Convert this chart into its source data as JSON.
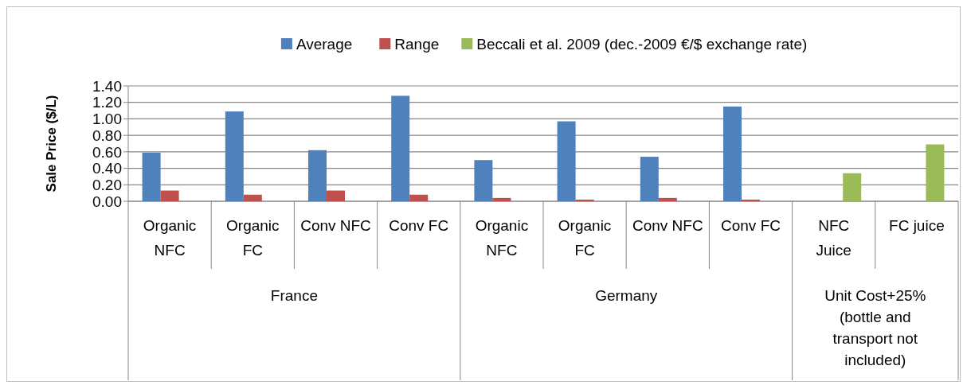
{
  "chart_data": {
    "type": "bar",
    "ylabel": "Sale Price ($/L)",
    "categories": [
      "Organic NFC",
      "Organic FC",
      "Conv NFC",
      "Conv FC",
      "Organic NFC",
      "Organic FC",
      "Conv NFC",
      "Conv FC",
      "NFC Juice",
      "FC juice"
    ],
    "series": [
      {
        "name": "Average",
        "color": "#4f81bd",
        "values": [
          0.59,
          1.09,
          0.62,
          1.28,
          0.5,
          0.97,
          0.54,
          1.15,
          null,
          null
        ]
      },
      {
        "name": "Range",
        "color": "#c0504d",
        "values": [
          0.13,
          0.08,
          0.13,
          0.08,
          0.04,
          0.02,
          0.04,
          0.02,
          null,
          null
        ]
      },
      {
        "name": "Beccali et al. 2009 (dec.-2009 €/$ exchange rate)",
        "color": "#9bbb59",
        "values": [
          null,
          null,
          null,
          null,
          null,
          null,
          null,
          null,
          0.34,
          0.69
        ]
      }
    ],
    "ylim": [
      0,
      1.4
    ],
    "yticks": [
      {
        "value": 0,
        "label": "0.00"
      },
      {
        "value": 0.2,
        "label": "0.20"
      },
      {
        "value": 0.4,
        "label": "0.40"
      },
      {
        "value": 0.6,
        "label": "0.60"
      },
      {
        "value": 0.8,
        "label": "0.80"
      },
      {
        "value": 1,
        "label": "1.00"
      },
      {
        "value": 1.2,
        "label": "1.20"
      },
      {
        "value": 1.4,
        "label": "1.40"
      }
    ],
    "grid": "y",
    "legend": "top",
    "annotations": [
      "France",
      "Germany",
      "Unit Cost+25% (bottle and transport not included)"
    ]
  }
}
